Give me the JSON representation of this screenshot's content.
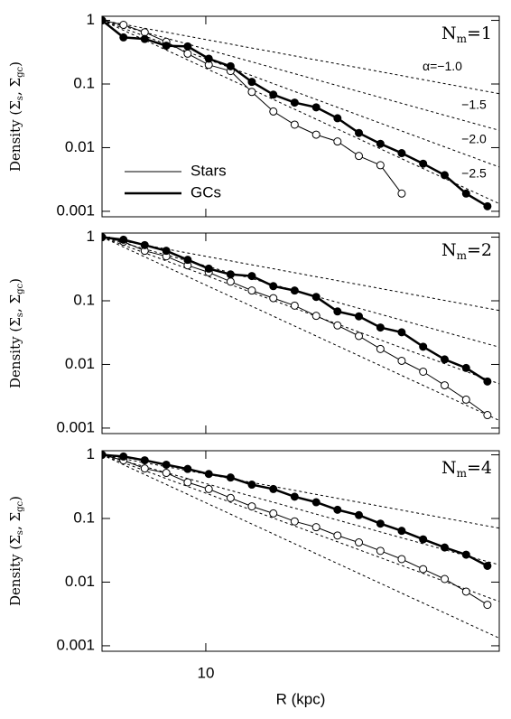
{
  "chart_data": [
    {
      "type": "line",
      "annotation": [
        "N",
        "m",
        "=1"
      ],
      "y_label": [
        "Density (Σ",
        "s",
        ", Σ",
        "gc",
        ")"
      ],
      "log_x": true,
      "log_y": true,
      "xlim": [
        5,
        71
      ],
      "ylim": [
        0.00082,
        1.16
      ],
      "xticks": [
        10
      ],
      "yticks": [
        1,
        0.1,
        0.01,
        0.001
      ],
      "x": [
        5.0,
        5.77,
        6.65,
        7.68,
        8.86,
        10.2,
        11.8,
        13.6,
        15.7,
        18.1,
        20.9,
        24.1,
        27.8,
        32.1,
        37.0,
        42.7,
        49.3,
        56.9,
        65.6
      ],
      "power_laws": [
        {
          "value": -1.0,
          "label": "α=−1.0"
        },
        {
          "value": -1.5,
          "label": "−1.5"
        },
        {
          "value": -2.0,
          "label": "−2.0"
        },
        {
          "value": -2.5,
          "label": "−2.5"
        }
      ],
      "legend": "lower left",
      "series": [
        {
          "name": "Stars",
          "color": "#000000",
          "line_width": 1,
          "marker": "open",
          "values": [
            1,
            0.85,
            0.65,
            0.46,
            0.3,
            0.2,
            0.16,
            0.075,
            0.037,
            0.023,
            0.016,
            0.0125,
            0.0074,
            0.0053,
            0.0019,
            null,
            null,
            null,
            null
          ]
        },
        {
          "name": "GCs",
          "color": "#000000",
          "line_width": 2.5,
          "marker": "filled",
          "values": [
            1,
            0.54,
            0.51,
            0.4,
            0.39,
            0.25,
            0.19,
            0.108,
            0.068,
            0.051,
            0.043,
            0.029,
            0.017,
            0.0115,
            0.0082,
            0.0056,
            0.0037,
            0.0019,
            0.0012
          ]
        }
      ]
    },
    {
      "type": "line",
      "annotation": [
        "N",
        "m",
        "=2"
      ],
      "y_label": [
        "Density (Σ",
        "s",
        ", Σ",
        "gc",
        ")"
      ],
      "log_x": true,
      "log_y": true,
      "xlim": [
        5,
        71
      ],
      "ylim": [
        0.00082,
        1.16
      ],
      "xticks": [
        10
      ],
      "yticks": [
        1,
        0.1,
        0.01,
        0.001
      ],
      "x": [
        5.0,
        5.77,
        6.65,
        7.68,
        8.86,
        10.2,
        11.8,
        13.6,
        15.7,
        18.1,
        20.9,
        24.1,
        27.8,
        32.1,
        37.0,
        42.7,
        49.3,
        56.9,
        65.6
      ],
      "power_laws": [
        -1.0,
        -1.5,
        -2.0,
        -2.5
      ],
      "series": [
        {
          "color": "#000000",
          "line_width": 1,
          "marker": "open",
          "values": [
            1,
            0.85,
            0.61,
            0.5,
            0.36,
            0.28,
            0.2,
            0.145,
            0.11,
            0.084,
            0.058,
            0.041,
            0.028,
            0.0175,
            0.0114,
            0.0077,
            0.0047,
            0.0028,
            0.0016
          ]
        },
        {
          "color": "#000000",
          "line_width": 2.5,
          "marker": "filled",
          "values": [
            1,
            0.91,
            0.75,
            0.61,
            0.44,
            0.32,
            0.26,
            0.245,
            0.17,
            0.145,
            0.115,
            0.068,
            0.057,
            0.038,
            0.032,
            0.019,
            0.012,
            0.0088,
            0.0054
          ]
        }
      ]
    },
    {
      "type": "line",
      "annotation": [
        "N",
        "m",
        "=4"
      ],
      "y_label": [
        "Density (Σ",
        "s",
        ", Σ",
        "gc",
        ")"
      ],
      "x_label": "R (kpc)",
      "log_x": true,
      "log_y": true,
      "xlim": [
        5,
        71
      ],
      "ylim": [
        0.00082,
        1.16
      ],
      "xticks": [
        10
      ],
      "yticks": [
        1,
        0.1,
        0.01,
        0.001
      ],
      "x": [
        5.0,
        5.77,
        6.65,
        7.68,
        8.86,
        10.2,
        11.8,
        13.6,
        15.7,
        18.1,
        20.9,
        24.1,
        27.8,
        32.1,
        37.0,
        42.7,
        49.3,
        56.9,
        65.6
      ],
      "power_laws": [
        -1.0,
        -1.5,
        -2.0,
        -2.5
      ],
      "series": [
        {
          "color": "#000000",
          "line_width": 1,
          "marker": "open",
          "values": [
            1,
            0.82,
            0.61,
            0.52,
            0.37,
            0.29,
            0.21,
            0.155,
            0.12,
            0.09,
            0.073,
            0.054,
            0.042,
            0.031,
            0.023,
            0.016,
            0.0112,
            0.0071,
            0.0044
          ]
        },
        {
          "color": "#000000",
          "line_width": 2.5,
          "marker": "filled",
          "values": [
            1,
            0.94,
            0.82,
            0.7,
            0.6,
            0.5,
            0.44,
            0.34,
            0.29,
            0.22,
            0.18,
            0.137,
            0.113,
            0.083,
            0.064,
            0.047,
            0.035,
            0.027,
            0.018
          ]
        }
      ]
    }
  ]
}
